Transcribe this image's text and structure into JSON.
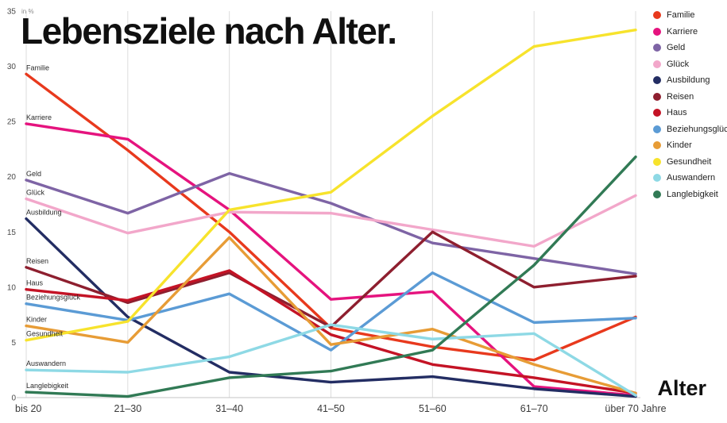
{
  "title": "Lebensziele nach Alter.",
  "x_axis_title": "Alter",
  "y_axis_unit": "in %",
  "chart_data": {
    "type": "line",
    "title": "Lebensziele nach Alter.",
    "xlabel": "Alter",
    "ylabel": "in %",
    "categories": [
      "bis 20",
      "21–30",
      "31–40",
      "41–50",
      "51–60",
      "61–70",
      "über 70 Jahre"
    ],
    "ylim": [
      0,
      35
    ],
    "yticks": [
      0,
      5,
      10,
      15,
      20,
      25,
      30,
      35
    ],
    "grid": "vertical",
    "legend_position": "top-right",
    "series": [
      {
        "name": "Familie",
        "color": "#e8391d",
        "values": [
          29.3,
          22.4,
          15.0,
          6.3,
          4.6,
          3.4,
          7.3
        ]
      },
      {
        "name": "Karriere",
        "color": "#e5137e",
        "values": [
          24.8,
          23.4,
          17.0,
          8.9,
          9.6,
          1.0,
          0.2
        ]
      },
      {
        "name": "Geld",
        "color": "#7e64a5",
        "values": [
          19.7,
          16.7,
          20.3,
          17.6,
          14.0,
          12.6,
          11.2
        ]
      },
      {
        "name": "Glück",
        "color": "#f2a7ca",
        "values": [
          18.0,
          14.9,
          16.8,
          16.7,
          15.2,
          13.7,
          18.3
        ]
      },
      {
        "name": "Ausbildung",
        "color": "#232d63",
        "values": [
          16.2,
          7.3,
          2.3,
          1.4,
          1.9,
          0.8,
          0.1
        ]
      },
      {
        "name": "Reisen",
        "color": "#8e1f2f",
        "values": [
          11.8,
          8.6,
          11.3,
          6.4,
          15.0,
          10.0,
          11.0
        ]
      },
      {
        "name": "Haus",
        "color": "#c41325",
        "values": [
          9.8,
          8.8,
          11.5,
          5.7,
          3.0,
          1.8,
          0.4
        ]
      },
      {
        "name": "Beziehungsglück",
        "color": "#5b9bd5",
        "values": [
          8.5,
          7.0,
          9.4,
          4.3,
          11.3,
          6.8,
          7.2
        ]
      },
      {
        "name": "Kinder",
        "color": "#e79c36",
        "values": [
          6.5,
          5.0,
          14.5,
          4.8,
          6.2,
          3.0,
          0.4
        ]
      },
      {
        "name": "Gesundheit",
        "color": "#f7e32c",
        "values": [
          5.2,
          6.9,
          17.0,
          18.6,
          25.5,
          31.8,
          33.3
        ]
      },
      {
        "name": "Auswandern",
        "color": "#8ed9e5",
        "values": [
          2.5,
          2.3,
          3.7,
          6.6,
          5.3,
          5.8,
          0.2
        ]
      },
      {
        "name": "Langlebigkeit",
        "color": "#317a55",
        "values": [
          0.5,
          0.1,
          1.8,
          2.4,
          4.3,
          12.0,
          21.8
        ]
      }
    ]
  }
}
